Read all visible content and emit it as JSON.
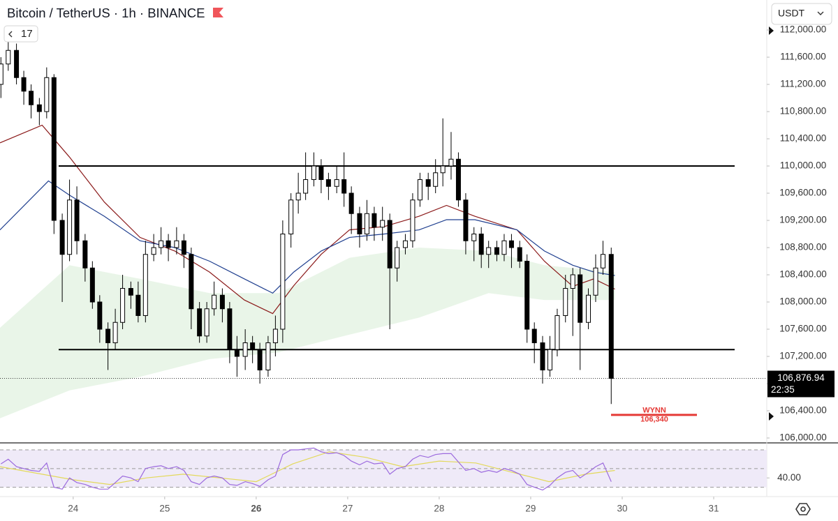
{
  "header": {
    "title": "Bitcoin / TetherUS · 1h · BINANCE",
    "badge": "17",
    "currency": "USDT"
  },
  "chart_data": {
    "type": "candlestick",
    "x": [
      23.21,
      23.29,
      23.38,
      23.46,
      23.54,
      23.63,
      23.71,
      23.79,
      23.88,
      23.96,
      24.04,
      24.13,
      24.21,
      24.29,
      24.38,
      24.46,
      24.54,
      24.63,
      24.71,
      24.79,
      24.88,
      24.96,
      25.04,
      25.13,
      25.21,
      25.29,
      25.38,
      25.46,
      25.54,
      25.63,
      25.71,
      25.79,
      25.88,
      25.96,
      26.04,
      26.13,
      26.21,
      26.29,
      26.38,
      26.46,
      26.54,
      26.63,
      26.71,
      26.79,
      26.88,
      26.96,
      27.04,
      27.13,
      27.21,
      27.29,
      27.38,
      27.46,
      27.54,
      27.63,
      27.71,
      27.79,
      27.88,
      27.96,
      28.04,
      28.13,
      28.21,
      28.29,
      28.38,
      28.46,
      28.54,
      28.63,
      28.71,
      28.79,
      28.88,
      28.96,
      29.04,
      29.13,
      29.21,
      29.29,
      29.38,
      29.46,
      29.54,
      29.63,
      29.71,
      29.79,
      29.88
    ],
    "open": [
      111200,
      111500,
      111700,
      111300,
      111100,
      110900,
      110800,
      111300,
      109200,
      108700,
      109500,
      108900,
      108500,
      108000,
      107600,
      107400,
      107700,
      108200,
      108100,
      107800,
      108700,
      108800,
      108900,
      108800,
      108900,
      108700,
      107900,
      107500,
      107900,
      108100,
      107900,
      107300,
      107200,
      107400,
      107300,
      107000,
      107400,
      107600,
      109000,
      109500,
      109600,
      109800,
      110000,
      109800,
      109700,
      109800,
      109600,
      109300,
      109000,
      109300,
      109100,
      109200,
      108500,
      108800,
      108900,
      109500,
      109800,
      109700,
      109900,
      110000,
      110100,
      109500,
      108900,
      109000,
      108700,
      108800,
      108700,
      108900,
      108800,
      108600,
      107600,
      107400,
      107000,
      107300,
      107800,
      108200,
      108400,
      107700,
      108100,
      108500,
      108700
    ],
    "high": [
      111600,
      111850,
      111800,
      111400,
      111200,
      111000,
      111450,
      111350,
      109300,
      109800,
      109700,
      109000,
      108600,
      108100,
      107700,
      107900,
      108400,
      108300,
      108300,
      108900,
      109000,
      109100,
      109000,
      109100,
      109000,
      108800,
      108000,
      108000,
      108300,
      108200,
      108000,
      107500,
      107600,
      107500,
      107400,
      107500,
      107800,
      109200,
      109600,
      109900,
      110200,
      110200,
      110100,
      109900,
      110000,
      110200,
      109700,
      109400,
      109500,
      109400,
      109400,
      109300,
      108900,
      109000,
      109600,
      109900,
      109900,
      110100,
      110700,
      110500,
      110200,
      109600,
      109100,
      109100,
      108900,
      108900,
      109000,
      109000,
      108900,
      108700,
      107700,
      107500,
      107500,
      107900,
      108400,
      108500,
      108500,
      108200,
      108700,
      108900,
      108800
    ],
    "low": [
      111000,
      111400,
      111200,
      110900,
      110700,
      110600,
      110700,
      109000,
      108000,
      108600,
      108700,
      108300,
      107900,
      107400,
      107000,
      107300,
      107600,
      107900,
      107700,
      107700,
      108600,
      108700,
      108600,
      108700,
      108500,
      107600,
      107400,
      107400,
      107800,
      107700,
      107100,
      106900,
      107000,
      107100,
      106800,
      106900,
      107200,
      107400,
      108800,
      109300,
      109500,
      109700,
      109600,
      109500,
      109600,
      109400,
      109000,
      108800,
      108900,
      108900,
      108900,
      107600,
      108300,
      108700,
      108800,
      109400,
      109500,
      109600,
      109700,
      109800,
      109400,
      108700,
      108600,
      108500,
      108500,
      108600,
      108600,
      108500,
      108500,
      107400,
      107100,
      106800,
      106900,
      107200,
      107700,
      107500,
      107000,
      107600,
      108000,
      108400,
      106500
    ],
    "close": [
      111500,
      111700,
      111300,
      111100,
      110900,
      110800,
      111300,
      109200,
      108700,
      109500,
      108900,
      108500,
      108000,
      107600,
      107400,
      107700,
      108200,
      108100,
      107800,
      108700,
      108800,
      108900,
      108800,
      108900,
      108700,
      107900,
      107500,
      107900,
      108100,
      107900,
      107300,
      107200,
      107400,
      107300,
      107000,
      107400,
      107600,
      109000,
      109500,
      109600,
      109800,
      110000,
      109800,
      109700,
      109800,
      109600,
      109300,
      109000,
      109300,
      109100,
      109200,
      108500,
      108800,
      108900,
      109500,
      109800,
      109700,
      109900,
      110000,
      110100,
      109500,
      108900,
      109000,
      108700,
      108800,
      108700,
      108900,
      108800,
      108600,
      107600,
      107400,
      107000,
      107300,
      107800,
      108200,
      108400,
      107700,
      108100,
      108500,
      108700,
      106876.94
    ],
    "colors": {
      "up": "#ffffff",
      "down": "#000000"
    },
    "xlim": [
      23.2,
      31.58
    ],
    "xticks": [
      24,
      25,
      26,
      27,
      28,
      29,
      30,
      31
    ],
    "ylim": [
      105928,
      112441
    ],
    "yticks": [
      {
        "value": 106000,
        "label": "106,000.00"
      },
      {
        "value": 106400,
        "label": "106,400.00"
      },
      {
        "value": 106800,
        "label": "106,800.00"
      },
      {
        "value": 107200,
        "label": "107,200.00"
      },
      {
        "value": 107600,
        "label": "107,600.00"
      },
      {
        "value": 108000,
        "label": "108,000.00"
      },
      {
        "value": 108400,
        "label": "108,400.00"
      },
      {
        "value": 108800,
        "label": "108,800.00"
      },
      {
        "value": 109200,
        "label": "109,200.00"
      },
      {
        "value": 109600,
        "label": "109,600.00"
      },
      {
        "value": 110000,
        "label": "110,000.00"
      },
      {
        "value": 110400,
        "label": "110,400.00"
      },
      {
        "value": 110800,
        "label": "110,800.00"
      },
      {
        "value": 111200,
        "label": "111,200.00"
      },
      {
        "value": 111600,
        "label": "111,600.00"
      },
      {
        "value": 112000,
        "label": "112,000.00"
      }
    ],
    "band": {
      "color": "#e9f5e8",
      "x": [
        23.2,
        23.96,
        24.73,
        25.49,
        26.25,
        27.02,
        27.78,
        28.54,
        29.15,
        29.92
      ],
      "upper": [
        107620,
        108540,
        108340,
        108130,
        108130,
        108650,
        108800,
        108750,
        108540,
        108440
      ],
      "lower": [
        106290,
        106700,
        106900,
        107160,
        107260,
        107520,
        107770,
        108130,
        108030,
        108030
      ]
    },
    "lines": [
      {
        "color": "#8b1a1a",
        "x": [
          23.2,
          23.66,
          23.96,
          24.34,
          24.73,
          25.11,
          25.49,
          25.87,
          26.18,
          26.41,
          26.71,
          27.02,
          27.4,
          27.78,
          28.08,
          28.39,
          28.85,
          29.15,
          29.46,
          29.69,
          29.92
        ],
        "values": [
          110340,
          110600,
          110130,
          109470,
          108950,
          108750,
          108440,
          108030,
          107830,
          108240,
          108700,
          109060,
          109110,
          109260,
          109420,
          109260,
          109060,
          108600,
          108230,
          108340,
          108190
        ]
      },
      {
        "color": "#1f3f8f",
        "x": [
          23.2,
          23.73,
          23.96,
          24.34,
          24.73,
          25.11,
          25.49,
          25.87,
          26.18,
          26.41,
          26.71,
          27.02,
          27.4,
          27.78,
          28.08,
          28.39,
          28.85,
          29.15,
          29.46,
          29.69,
          29.92
        ],
        "values": [
          109060,
          109780,
          109570,
          109260,
          108900,
          108800,
          108600,
          108340,
          108130,
          108440,
          108750,
          108950,
          109000,
          109060,
          109210,
          109210,
          109060,
          108750,
          108540,
          108440,
          108390
        ]
      }
    ],
    "levels": [
      110000,
      107300
    ],
    "target": {
      "label": "WYNN",
      "value": 106340,
      "value_label": "106,340",
      "color": "#e53935"
    },
    "last_price": {
      "value": 106876.94,
      "label": "106,876.94",
      "countdown": "22:35"
    },
    "rsi": {
      "color": "#9c6ade",
      "background": "#efeaf8",
      "ylim": [
        20,
        76
      ],
      "levels": [
        70,
        50,
        30
      ],
      "yticks": [
        {
          "value": 40,
          "label": "40.00"
        }
      ],
      "values": [
        55,
        60,
        52,
        50,
        48,
        47,
        56,
        30,
        28,
        40,
        35,
        33,
        30,
        28,
        28,
        35,
        42,
        40,
        36,
        50,
        52,
        53,
        50,
        52,
        48,
        36,
        33,
        40,
        42,
        40,
        33,
        32,
        36,
        34,
        31,
        38,
        42,
        65,
        70,
        70,
        71,
        72,
        68,
        66,
        67,
        64,
        58,
        54,
        58,
        55,
        56,
        44,
        50,
        52,
        60,
        64,
        62,
        65,
        66,
        66,
        57,
        48,
        50,
        46,
        48,
        46,
        50,
        48,
        44,
        33,
        30,
        27,
        32,
        40,
        46,
        48,
        40,
        46,
        52,
        56,
        36
      ],
      "signal": {
        "color": "#e3d95a",
        "x": [
          23.2,
          23.6,
          24.0,
          24.4,
          24.8,
          25.2,
          25.6,
          26.0,
          26.4,
          26.8,
          27.2,
          27.6,
          28.0,
          28.4,
          28.8,
          29.2,
          29.6,
          29.92
        ],
        "values": [
          52,
          45,
          38,
          33,
          40,
          44,
          40,
          36,
          55,
          68,
          62,
          52,
          58,
          56,
          46,
          36,
          44,
          48
        ]
      }
    }
  }
}
